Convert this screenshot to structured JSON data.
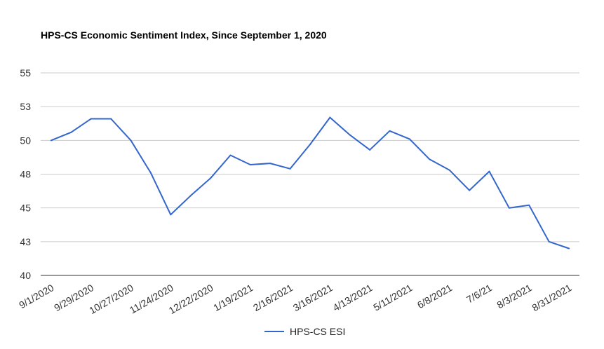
{
  "chart_data": {
    "type": "line",
    "title": "HPS-CS Economic Sentiment Index, Since September 1, 2020",
    "xlabel": "",
    "ylabel": "",
    "x": [
      "9/1/2020",
      "9/15/2020",
      "9/29/2020",
      "10/13/2020",
      "10/27/2020",
      "11/10/2020",
      "11/24/2020",
      "12/8/2020",
      "12/22/2020",
      "1/5/2021",
      "1/19/2021",
      "2/2/2021",
      "2/16/2021",
      "3/2/2021",
      "3/16/2021",
      "3/30/2021",
      "4/13/2021",
      "4/27/2021",
      "5/11/2021",
      "5/25/2021",
      "6/8/2021",
      "6/22/2021",
      "7/6/21",
      "7/20/21",
      "8/3/2021",
      "8/17/2021",
      "8/31/2021"
    ],
    "x_tick_labels": [
      "9/1/2020",
      "9/29/2020",
      "10/27/2020",
      "11/24/2020",
      "12/22/2020",
      "1/19/2021",
      "2/16/2021",
      "3/16/2021",
      "4/13/2021",
      "5/11/2021",
      "6/8/2021",
      "7/6/21",
      "8/3/2021",
      "8/31/2021"
    ],
    "y_tick_labels": [
      "40",
      "43",
      "45",
      "48",
      "50",
      "53",
      "55"
    ],
    "ylim": [
      40,
      55
    ],
    "grid": true,
    "legend_position": "bottom",
    "series": [
      {
        "name": "HPS-CS ESI",
        "color": "#3366cc",
        "values": [
          50.0,
          50.6,
          51.6,
          51.6,
          50.0,
          47.6,
          44.5,
          45.9,
          47.2,
          48.9,
          48.2,
          48.3,
          47.9,
          49.7,
          51.7,
          50.4,
          49.3,
          50.7,
          50.1,
          48.6,
          47.8,
          46.3,
          47.7,
          45.0,
          45.2,
          42.5,
          42.0
        ]
      }
    ]
  },
  "colors": {
    "line": "#3366cc",
    "grid": "#cccccc",
    "axis": "#333333"
  }
}
